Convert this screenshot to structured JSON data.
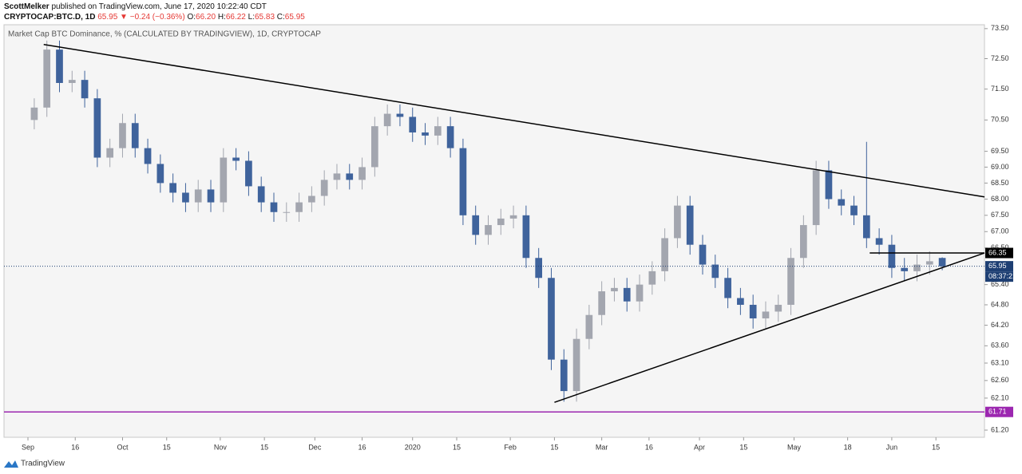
{
  "header": {
    "author": "ScottMelker",
    "published": "published on TradingView.com, June 17, 2020 10:22:40 CDT",
    "symbol": "CRYPTOCAP:BTC.D, 1D",
    "last": "65.95",
    "change": "▼ −0.24 (−0.36%)",
    "o_label": "O:",
    "o": "66.20",
    "h_label": "H:",
    "h": "66.22",
    "l_label": "L:",
    "l": "65.83",
    "c_label": "C:",
    "c": "65.95"
  },
  "footer": {
    "brand": "TradingView"
  },
  "chart_data": {
    "type": "candlestick",
    "title": "Market Cap BTC Dominance, % (CALCULATED BY TRADINGVIEW), 1D, CRYPTOCAP",
    "log_scale": true,
    "up_color": "#a3a6af",
    "down_color": "#3f639c",
    "xlim": [
      -7.6,
      303.4
    ],
    "ylim": [
      61.0,
      73.63
    ],
    "xticks": [
      {
        "value": 0,
        "label": "Sep"
      },
      {
        "value": 15,
        "label": "16"
      },
      {
        "value": 30,
        "label": "Oct"
      },
      {
        "value": 44,
        "label": "15"
      },
      {
        "value": 61,
        "label": "Nov"
      },
      {
        "value": 75,
        "label": "15"
      },
      {
        "value": 91,
        "label": "Dec"
      },
      {
        "value": 106,
        "label": "16"
      },
      {
        "value": 122,
        "label": "2020"
      },
      {
        "value": 136,
        "label": "15"
      },
      {
        "value": 153,
        "label": "Feb"
      },
      {
        "value": 167,
        "label": "15"
      },
      {
        "value": 182,
        "label": "Mar"
      },
      {
        "value": 197,
        "label": "16"
      },
      {
        "value": 213,
        "label": "Apr"
      },
      {
        "value": 227,
        "label": "15"
      },
      {
        "value": 243,
        "label": "May"
      },
      {
        "value": 260,
        "label": "18"
      },
      {
        "value": 274,
        "label": "Jun"
      },
      {
        "value": 288,
        "label": "15"
      }
    ],
    "yticks": [
      {
        "value": 73.5,
        "label": "73.50"
      },
      {
        "value": 72.5,
        "label": "72.50"
      },
      {
        "value": 71.5,
        "label": "71.50"
      },
      {
        "value": 70.5,
        "label": "70.50"
      },
      {
        "value": 69.5,
        "label": "69.50"
      },
      {
        "value": 69.0,
        "label": "69.00"
      },
      {
        "value": 68.5,
        "label": "68.50"
      },
      {
        "value": 68.0,
        "label": "68.00"
      },
      {
        "value": 67.5,
        "label": "67.50"
      },
      {
        "value": 67.0,
        "label": "67.00"
      },
      {
        "value": 66.5,
        "label": "66.50"
      },
      {
        "value": 65.4,
        "label": "65.40"
      },
      {
        "value": 64.8,
        "label": "64.80"
      },
      {
        "value": 64.2,
        "label": "64.20"
      },
      {
        "value": 63.6,
        "label": "63.60"
      },
      {
        "value": 63.1,
        "label": "63.10"
      },
      {
        "value": 62.6,
        "label": "62.60"
      },
      {
        "value": 62.1,
        "label": "62.10"
      },
      {
        "value": 61.2,
        "label": "61.20"
      }
    ],
    "x": [
      2,
      6,
      10,
      14,
      18,
      22,
      26,
      30,
      34,
      38,
      42,
      46,
      50,
      54,
      58,
      62,
      66,
      70,
      74,
      78,
      82,
      86,
      90,
      94,
      98,
      102,
      106,
      110,
      114,
      118,
      122,
      126,
      130,
      134,
      138,
      142,
      146,
      150,
      154,
      158,
      162,
      166,
      170,
      174,
      178,
      182,
      186,
      190,
      194,
      198,
      202,
      206,
      210,
      214,
      218,
      222,
      226,
      230,
      234,
      238,
      242,
      246,
      250,
      254,
      258,
      262,
      266,
      270,
      274,
      278,
      282,
      286,
      290
    ],
    "open": [
      70.5,
      70.9,
      72.8,
      71.7,
      71.8,
      71.2,
      69.3,
      69.6,
      70.4,
      69.6,
      69.1,
      68.5,
      68.2,
      67.9,
      68.3,
      67.9,
      69.3,
      69.2,
      68.4,
      67.9,
      67.6,
      67.6,
      67.9,
      68.1,
      68.6,
      68.8,
      68.6,
      69.0,
      70.3,
      70.7,
      70.6,
      70.1,
      70.0,
      70.3,
      69.6,
      67.5,
      66.9,
      67.2,
      67.4,
      67.5,
      66.2,
      65.6,
      63.2,
      62.3,
      63.8,
      64.5,
      65.2,
      65.3,
      64.9,
      65.4,
      65.8,
      66.8,
      67.8,
      66.6,
      66.0,
      65.6,
      65.0,
      64.8,
      64.4,
      64.6,
      64.8,
      66.2,
      67.2,
      68.9,
      68.0,
      67.8,
      67.5,
      66.8,
      66.6,
      65.9,
      65.8,
      66.0,
      66.2
    ],
    "high": [
      71.2,
      73.1,
      73.1,
      72.1,
      72.1,
      71.5,
      69.9,
      70.7,
      70.7,
      69.9,
      69.4,
      68.8,
      68.5,
      68.6,
      68.6,
      69.6,
      69.6,
      69.5,
      68.7,
      68.2,
      67.9,
      68.2,
      68.4,
      68.9,
      69.1,
      69.1,
      69.3,
      70.6,
      71.0,
      71.0,
      70.9,
      70.4,
      70.6,
      70.6,
      69.9,
      67.8,
      67.5,
      67.7,
      67.8,
      67.8,
      66.5,
      65.9,
      63.5,
      64.1,
      64.8,
      65.5,
      65.6,
      65.6,
      65.7,
      66.1,
      67.1,
      68.1,
      68.1,
      66.9,
      66.3,
      65.9,
      65.3,
      65.1,
      64.9,
      65.1,
      66.5,
      67.5,
      69.2,
      69.2,
      68.3,
      68.1,
      69.8,
      67.1,
      66.9,
      66.2,
      66.3,
      66.4,
      66.22
    ],
    "low": [
      70.2,
      70.6,
      71.4,
      71.4,
      70.9,
      69.0,
      69.0,
      69.3,
      69.3,
      68.8,
      68.2,
      67.9,
      67.6,
      67.6,
      67.6,
      67.6,
      68.9,
      68.1,
      67.6,
      67.3,
      67.3,
      67.3,
      67.6,
      67.8,
      68.3,
      68.3,
      68.3,
      68.7,
      70.0,
      70.3,
      69.8,
      69.7,
      69.7,
      69.3,
      67.2,
      66.6,
      66.6,
      66.9,
      67.1,
      65.9,
      65.3,
      62.9,
      62.0,
      62.0,
      63.5,
      64.2,
      64.9,
      64.6,
      64.6,
      65.1,
      65.5,
      66.5,
      66.3,
      65.7,
      65.3,
      64.7,
      64.5,
      64.1,
      64.1,
      64.3,
      64.5,
      65.9,
      66.9,
      67.7,
      67.5,
      67.2,
      66.5,
      66.3,
      65.6,
      65.5,
      65.5,
      65.7,
      65.83
    ],
    "close": [
      70.9,
      72.8,
      71.7,
      71.8,
      71.2,
      69.3,
      69.6,
      70.4,
      69.6,
      69.1,
      68.5,
      68.2,
      67.9,
      68.3,
      67.9,
      69.3,
      69.2,
      68.4,
      67.9,
      67.6,
      67.6,
      67.9,
      68.1,
      68.6,
      68.8,
      68.6,
      69.0,
      70.3,
      70.7,
      70.6,
      70.1,
      70.0,
      70.3,
      69.6,
      67.5,
      66.9,
      67.2,
      67.4,
      67.5,
      66.2,
      65.6,
      63.2,
      62.3,
      63.8,
      64.5,
      65.2,
      65.3,
      64.9,
      65.4,
      65.8,
      66.8,
      67.8,
      66.6,
      66.0,
      65.6,
      65.0,
      64.8,
      64.4,
      64.6,
      64.8,
      66.2,
      67.2,
      68.9,
      68.0,
      67.8,
      67.5,
      66.8,
      66.6,
      65.9,
      65.8,
      66.0,
      66.1,
      65.95
    ],
    "last_price_color": "#1e3f73",
    "countdown": "08:37:21",
    "trendlines": [
      {
        "x": [
          5,
          303.4
        ],
        "y": [
          72.97,
          68.07
        ],
        "color": "#000000"
      },
      {
        "x": [
          167,
          303.4
        ],
        "y": [
          61.98,
          66.35
        ],
        "color": "#000000"
      }
    ],
    "hlines": [
      {
        "x": [
          267,
          303.4
        ],
        "value": 66.35,
        "color": "#000000",
        "label_color": "#000000"
      },
      {
        "x": [
          -7.6,
          303.4
        ],
        "value": 61.71,
        "color": "#9c27b0",
        "label_color": "#9c27b0"
      }
    ]
  }
}
